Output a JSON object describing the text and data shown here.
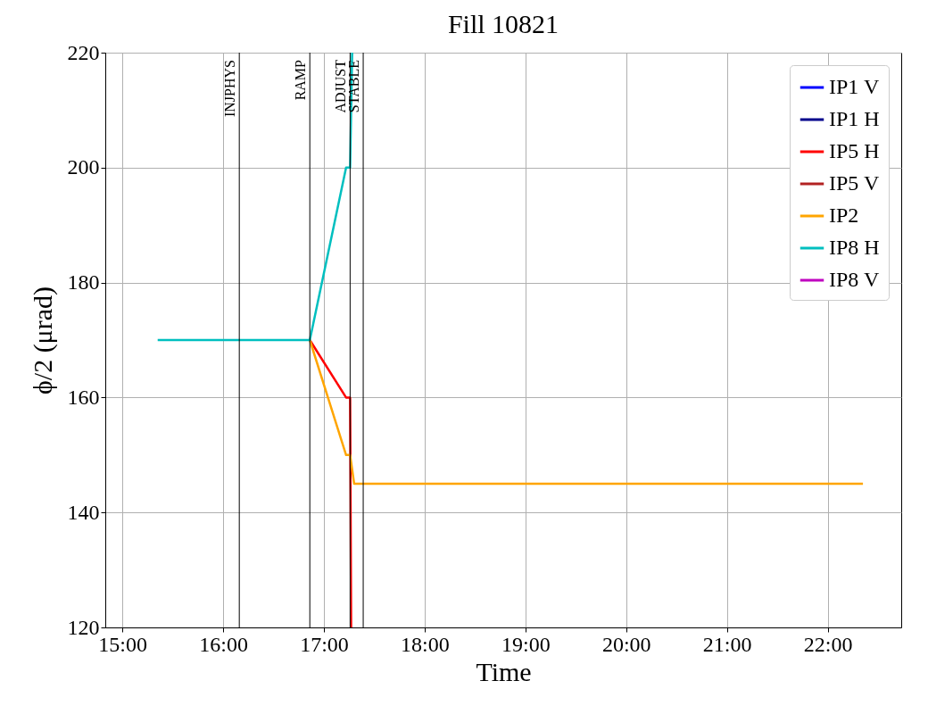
{
  "chart_data": {
    "type": "line",
    "title": "Fill 10821",
    "xlabel": "Time",
    "ylabel": "ϕ/2 (μrad)",
    "xlim": [
      14.83,
      22.73
    ],
    "xticks": [
      {
        "value": 15,
        "label": "15:00"
      },
      {
        "value": 16,
        "label": "16:00"
      },
      {
        "value": 17,
        "label": "17:00"
      },
      {
        "value": 18,
        "label": "18:00"
      },
      {
        "value": 19,
        "label": "19:00"
      },
      {
        "value": 20,
        "label": "20:00"
      },
      {
        "value": 21,
        "label": "21:00"
      },
      {
        "value": 22,
        "label": "22:00"
      }
    ],
    "ylim": [
      120,
      220
    ],
    "yticks": [
      120,
      140,
      160,
      180,
      200,
      220
    ],
    "grid": true,
    "legend": "top right",
    "series": [
      {
        "name": "IP1 V",
        "color": "#0000ff"
      },
      {
        "name": "IP1 H",
        "color": "#00008b"
      },
      {
        "name": "IP5 H",
        "color": "#ff0000",
        "x": [
          16.86,
          17.22,
          17.26,
          17.27
        ],
        "values": [
          170,
          160,
          160,
          120
        ]
      },
      {
        "name": "IP5 V",
        "color": "#b22222"
      },
      {
        "name": "IP2",
        "color": "#ffa500",
        "x": [
          16.86,
          17.22,
          17.26,
          17.3,
          22.35
        ],
        "values": [
          170,
          150,
          150,
          145,
          145
        ]
      },
      {
        "name": "IP8 H",
        "color": "#00bfbf",
        "x": [
          15.35,
          16.86,
          17.22,
          17.26,
          17.28
        ],
        "values": [
          170,
          170,
          200,
          200,
          220
        ]
      },
      {
        "name": "IP8 V",
        "color": "#bf00bf"
      }
    ],
    "ref_lines": [
      {
        "axis": "x",
        "value": 16.16,
        "label": "INJPHYS",
        "color": "#000000"
      },
      {
        "axis": "x",
        "value": 16.86,
        "label": "RAMP",
        "color": "#000000"
      },
      {
        "axis": "x",
        "value": 17.26,
        "label": "ADJUST",
        "color": "#000000"
      },
      {
        "axis": "x",
        "value": 17.39,
        "label": "STABLE",
        "color": "#000000"
      }
    ]
  }
}
